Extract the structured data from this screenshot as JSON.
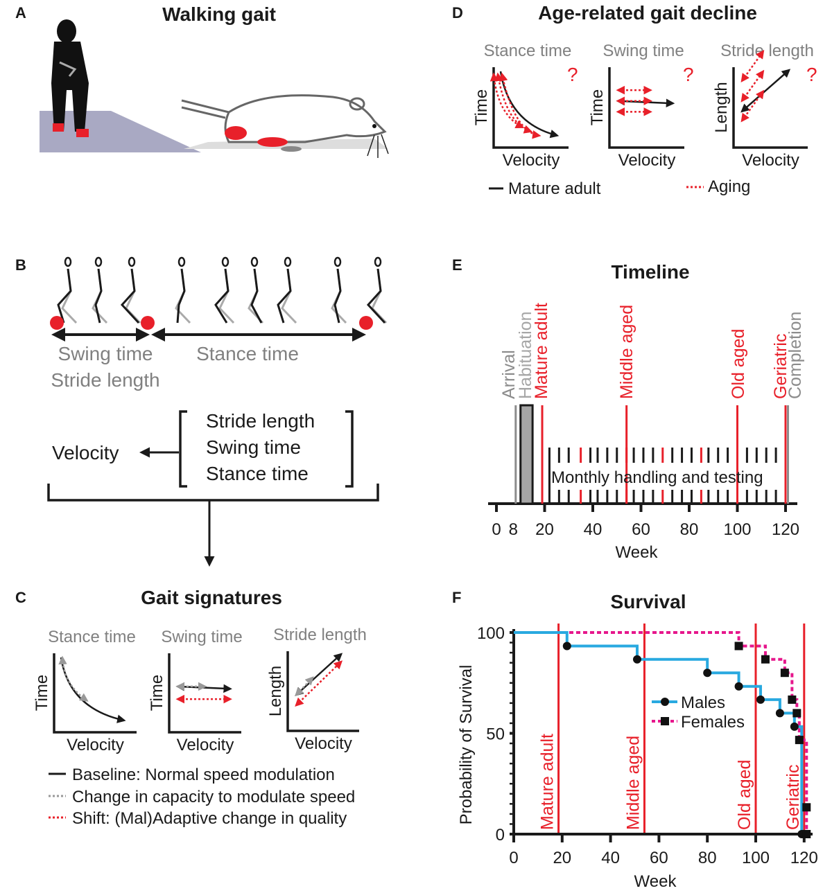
{
  "panels": {
    "a": {
      "letter": "A",
      "title": "Walking gait"
    },
    "b": {
      "letter": "B",
      "swing_time": "Swing time",
      "stance_time": "Stance time",
      "stride_length": "Stride length",
      "bracket_items": [
        "Stride length",
        "Swing time",
        "Stance time"
      ],
      "velocity": "Velocity"
    },
    "c": {
      "letter": "C",
      "title": "Gait signatures",
      "plots": [
        {
          "title": "Stance time",
          "ylabel": "Time",
          "xlabel": "Velocity"
        },
        {
          "title": "Swing time",
          "ylabel": "Time",
          "xlabel": "Velocity"
        },
        {
          "title": "Stride length",
          "ylabel": "Length",
          "xlabel": "Velocity"
        }
      ],
      "legend": [
        "Baseline: Normal speed modulation",
        "Change in capacity to modulate speed",
        "Shift: (Mal)Adaptive change in quality"
      ]
    },
    "d": {
      "letter": "D",
      "title": "Age-related gait decline",
      "plots": [
        {
          "title": "Stance time",
          "ylabel": "Time",
          "xlabel": "Velocity",
          "mark": "?"
        },
        {
          "title": "Swing time",
          "ylabel": "Time",
          "xlabel": "Velocity",
          "mark": "?"
        },
        {
          "title": "Stride length",
          "ylabel": "Length",
          "xlabel": "Velocity",
          "mark": "?"
        }
      ],
      "legend": [
        "Mature adult",
        "Aging"
      ]
    },
    "e": {
      "letter": "E",
      "title": "Timeline",
      "xlabel": "Week",
      "tick_labels": [
        "0",
        "8",
        "20",
        "40",
        "60",
        "80",
        "100",
        "120"
      ],
      "band_label": "Monthly handling and testing",
      "events": [
        {
          "label": "Arrival",
          "week": 8,
          "color": "#8c8c8c"
        },
        {
          "label": "Habituation",
          "week_start": 10,
          "week_end": 15,
          "color": "#a6a6a6"
        },
        {
          "label": "Mature adult",
          "week": 19,
          "color": "#e8202a"
        },
        {
          "label": "Middle aged",
          "week": 54,
          "color": "#e8202a"
        },
        {
          "label": "Old aged",
          "week": 100,
          "color": "#e8202a"
        },
        {
          "label": "Geriatric",
          "week": 120,
          "color": "#e8202a"
        },
        {
          "label": "Completion",
          "week": 121,
          "color": "#8c8c8c"
        }
      ],
      "monthly_sessions_weeks": [
        22,
        26,
        30,
        35,
        39,
        42,
        46,
        50,
        54,
        57,
        61,
        65,
        69,
        73,
        77,
        81,
        85,
        88,
        92,
        96,
        100,
        104,
        108,
        112,
        116
      ],
      "red_sessions_weeks": [
        35,
        54,
        69,
        85,
        100
      ]
    }
  },
  "chart_data": {
    "type": "line",
    "letter": "F",
    "title": "Survival",
    "xlabel": "Week",
    "ylabel": "Probability of Survival",
    "xlim": [
      0,
      122
    ],
    "ylim": [
      0,
      100
    ],
    "xticks": [
      0,
      20,
      40,
      60,
      80,
      100,
      120
    ],
    "yticks": [
      0,
      50,
      100
    ],
    "legend_position": "center-right",
    "vlines": [
      {
        "label": "Mature adult",
        "week": 18.5
      },
      {
        "label": "Middle aged",
        "week": 54
      },
      {
        "label": "Old aged",
        "week": 100
      },
      {
        "label": "Geriatric",
        "week": 120
      }
    ],
    "series": [
      {
        "name": "Males",
        "color": "#29a9e0",
        "marker": "circle",
        "style": "solid",
        "x": [
          0,
          22,
          51,
          80,
          93,
          102,
          110,
          116,
          119
        ],
        "y": [
          100,
          93.3,
          86.7,
          80,
          73.3,
          66.7,
          60,
          53.3,
          0
        ]
      },
      {
        "name": "Females",
        "color": "#e6178c",
        "marker": "square",
        "style": "dashed",
        "x": [
          0,
          93,
          104,
          112,
          115,
          117,
          118,
          121,
          121
        ],
        "y": [
          100,
          93.3,
          86.7,
          80,
          66.7,
          60,
          46.7,
          13.3,
          0
        ]
      }
    ]
  }
}
